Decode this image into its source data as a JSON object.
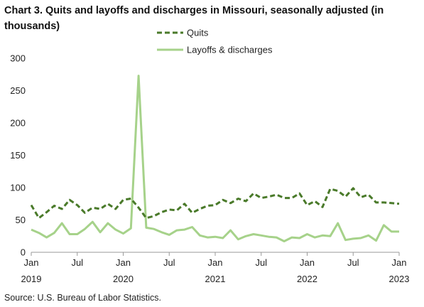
{
  "title": "Chart 3. Quits and layoffs and discharges in Missouri, seasonally adjusted (in thousands)",
  "source": "Source: U.S. Bureau of Labor Statistics.",
  "chart_data": {
    "type": "line",
    "title": "Chart 3. Quits and layoffs and discharges in Missouri, seasonally adjusted (in thousands)",
    "ylim": [
      0,
      300
    ],
    "yticks": [
      0,
      50,
      100,
      150,
      200,
      250,
      300
    ],
    "grid": false,
    "legend_position": "top",
    "x_start": "2019-01",
    "x_end": "2023-01",
    "x_ticks": [
      {
        "month": "Jan",
        "year": "2019"
      },
      {
        "month": "Jul",
        "year": ""
      },
      {
        "month": "Jan",
        "year": "2020"
      },
      {
        "month": "Jul",
        "year": ""
      },
      {
        "month": "Jan",
        "year": "2021"
      },
      {
        "month": "Jul",
        "year": ""
      },
      {
        "month": "Jan",
        "year": "2022"
      },
      {
        "month": "Jul",
        "year": ""
      },
      {
        "month": "Jan",
        "year": "2023"
      }
    ],
    "series": [
      {
        "name": "Quits",
        "color": "#4a7a2a",
        "style": "dashed",
        "values": [
          73,
          53,
          62,
          72,
          67,
          81,
          73,
          61,
          69,
          67,
          75,
          67,
          81,
          83,
          69,
          53,
          56,
          62,
          66,
          65,
          75,
          61,
          67,
          72,
          73,
          81,
          76,
          83,
          79,
          91,
          84,
          86,
          89,
          84,
          84,
          91,
          73,
          79,
          70,
          98,
          95,
          86,
          99,
          85,
          89,
          77,
          77,
          76,
          75
        ]
      },
      {
        "name": "Layoffs & discharges",
        "color": "#a6d28a",
        "style": "solid",
        "values": [
          35,
          30,
          23,
          30,
          45,
          28,
          28,
          36,
          47,
          31,
          45,
          35,
          29,
          37,
          273,
          38,
          36,
          31,
          27,
          34,
          35,
          39,
          26,
          23,
          24,
          22,
          34,
          20,
          25,
          28,
          26,
          24,
          23,
          17,
          23,
          22,
          28,
          23,
          26,
          25,
          45,
          19,
          21,
          22,
          26,
          18,
          42,
          32,
          32
        ]
      }
    ]
  }
}
